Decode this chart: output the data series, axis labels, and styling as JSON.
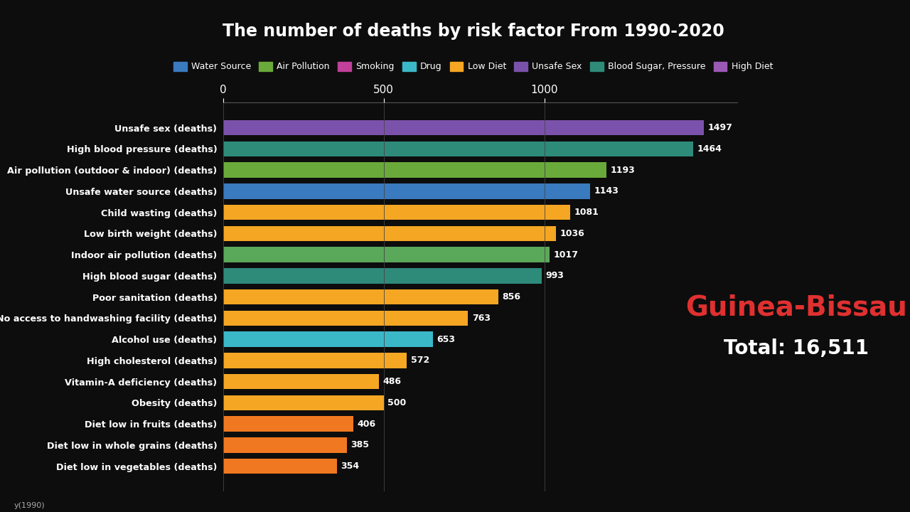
{
  "title": "The number of deaths by risk factor From 1990-2020",
  "background_color": "#0d0d0d",
  "text_color": "#ffffff",
  "categories": [
    "Unsafe sex (deaths)",
    "High blood pressure (deaths)",
    "Air pollution (outdoor & indoor) (deaths)",
    "Unsafe water source (deaths)",
    "Child wasting (deaths)",
    "Low birth weight (deaths)",
    "Indoor air pollution (deaths)",
    "High blood sugar (deaths)",
    "Poor sanitation (deaths)",
    "No access to handwashing facility (deaths)",
    "Alcohol use (deaths)",
    "High cholesterol (deaths)",
    "Vitamin-A deficiency (deaths)",
    "Obesity (deaths)",
    "Diet low in fruits (deaths)",
    "Diet low in whole grains (deaths)",
    "Diet low in vegetables (deaths)"
  ],
  "values": [
    1497,
    1464,
    1193,
    1143,
    1081,
    1036,
    1017,
    993,
    856,
    763,
    653,
    572,
    486,
    500,
    406,
    385,
    354
  ],
  "bar_colors": [
    "#7b52ab",
    "#2e8b7a",
    "#6aaa3a",
    "#3a7abf",
    "#f5a623",
    "#f5a623",
    "#5aa85a",
    "#2e8b7a",
    "#f5a623",
    "#f5a623",
    "#3ab8c8",
    "#f5a623",
    "#f5a623",
    "#f5a623",
    "#f07820",
    "#f07820",
    "#f07820"
  ],
  "legend_items": [
    {
      "label": "Water Source",
      "color": "#3a7abf"
    },
    {
      "label": "Air Pollution",
      "color": "#6aaa3a"
    },
    {
      "label": "Smoking",
      "color": "#c0409a"
    },
    {
      "label": "Drug",
      "color": "#3ab8c8"
    },
    {
      "label": "Low Diet",
      "color": "#f5a623"
    },
    {
      "label": "Unsafe Sex",
      "color": "#7b52ab"
    },
    {
      "label": "Blood Sugar, Pressure",
      "color": "#2e8b7a"
    },
    {
      "label": "High Diet",
      "color": "#9b59b6"
    }
  ],
  "country_label": "Guinea-Bissau",
  "total_label": "Total: 16,511",
  "xlim": [
    0,
    1600
  ],
  "xticks": [
    0,
    500,
    1000
  ],
  "bottom_label": "y(1990)"
}
